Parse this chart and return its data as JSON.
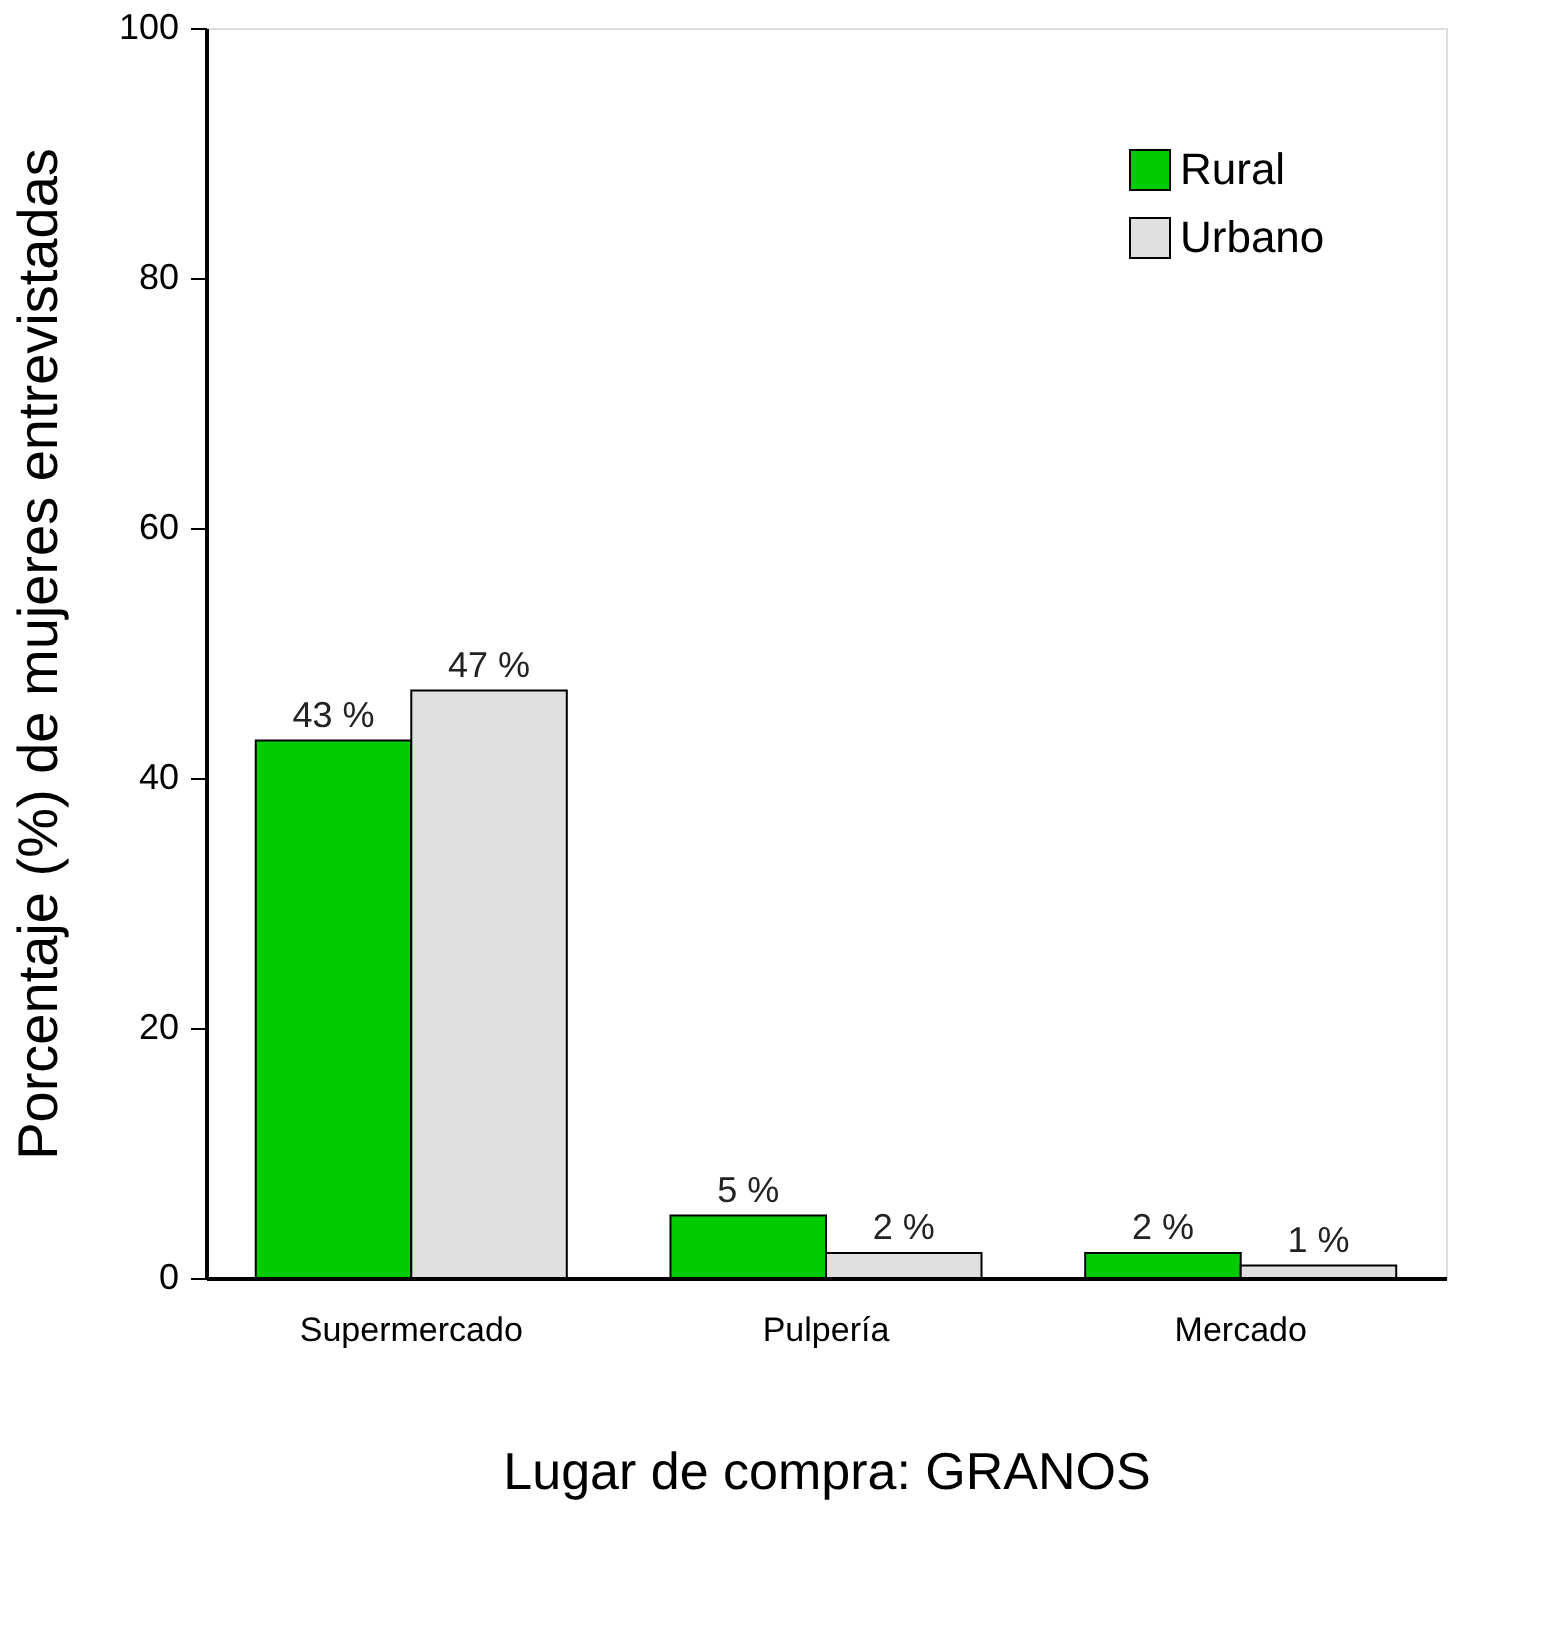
{
  "chart_data": {
    "type": "bar",
    "xlabel": "Lugar de compra: GRANOS",
    "ylabel": "Porcentaje (%) de mujeres entrevistadas",
    "categories": [
      "Supermercado",
      "Pulpería",
      "Mercado"
    ],
    "series": [
      {
        "name": "Rural",
        "color": "#00cc00",
        "values": [
          43,
          5,
          2
        ],
        "value_labels": [
          "43 %",
          "5 %",
          "2 %"
        ]
      },
      {
        "name": "Urbano",
        "color": "#e0e0e0",
        "values": [
          47,
          2,
          1
        ],
        "value_labels": [
          "47 %",
          "2 %",
          "1 %"
        ]
      }
    ],
    "ylim": [
      0,
      100
    ],
    "yticks": [
      0,
      20,
      40,
      60,
      80,
      100
    ],
    "grid": false,
    "legend": "top right"
  }
}
